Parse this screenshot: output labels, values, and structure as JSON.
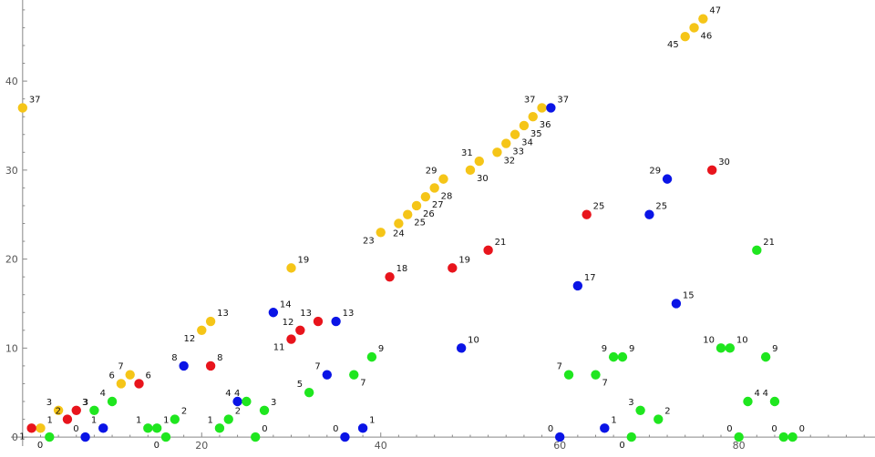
{
  "chart_data": {
    "type": "scatter",
    "title": "",
    "xlabel": "",
    "ylabel": "",
    "xlim": [
      -1,
      95
    ],
    "ylim": [
      -0.5,
      48.5
    ],
    "grid": false,
    "legend": "none",
    "x_ticks": [
      20,
      40,
      60,
      80
    ],
    "y_ticks": [
      0,
      10,
      20,
      30,
      40
    ],
    "colors": {
      "yellow": "#f5c518",
      "red": "#e8141c",
      "blue": "#0a14e6",
      "green": "#1fe61f"
    },
    "series": [
      {
        "color": "yellow",
        "points": [
          {
            "x": 0,
            "y": 37,
            "label": "37"
          },
          {
            "x": 2,
            "y": 1,
            "label": "1"
          },
          {
            "x": 4,
            "y": 3,
            "label": "3"
          },
          {
            "x": 11,
            "y": 6,
            "label": "6"
          },
          {
            "x": 12,
            "y": 7,
            "label": "7"
          },
          {
            "x": 20,
            "y": 12,
            "label": "12"
          },
          {
            "x": 21,
            "y": 13,
            "label": "13"
          },
          {
            "x": 30,
            "y": 19,
            "label": "19"
          },
          {
            "x": 40,
            "y": 23,
            "label": "23"
          },
          {
            "x": 42,
            "y": 24,
            "label": "24"
          },
          {
            "x": 43,
            "y": 25,
            "label": "25"
          },
          {
            "x": 44,
            "y": 26,
            "label": "26"
          },
          {
            "x": 45,
            "y": 27,
            "label": "27"
          },
          {
            "x": 46,
            "y": 28,
            "label": "28"
          },
          {
            "x": 47,
            "y": 29,
            "label": "29"
          },
          {
            "x": 50,
            "y": 30,
            "label": "30"
          },
          {
            "x": 51,
            "y": 31,
            "label": "31"
          },
          {
            "x": 53,
            "y": 32,
            "label": "32"
          },
          {
            "x": 54,
            "y": 33,
            "label": "33"
          },
          {
            "x": 55,
            "y": 34,
            "label": "34"
          },
          {
            "x": 56,
            "y": 35,
            "label": "35"
          },
          {
            "x": 57,
            "y": 36,
            "label": "36"
          },
          {
            "x": 58,
            "y": 37,
            "label": "37"
          },
          {
            "x": 74,
            "y": 45,
            "label": "45"
          },
          {
            "x": 75,
            "y": 46,
            "label": "46"
          },
          {
            "x": 76,
            "y": 47,
            "label": "47"
          }
        ]
      },
      {
        "color": "red",
        "points": [
          {
            "x": 1,
            "y": 1,
            "label": "1"
          },
          {
            "x": 5,
            "y": 2,
            "label": "2"
          },
          {
            "x": 6,
            "y": 3,
            "label": "3"
          },
          {
            "x": 13,
            "y": 6,
            "label": "6"
          },
          {
            "x": 21,
            "y": 8,
            "label": "8"
          },
          {
            "x": 30,
            "y": 11,
            "label": "11"
          },
          {
            "x": 31,
            "y": 12,
            "label": "12"
          },
          {
            "x": 33,
            "y": 13,
            "label": "13"
          },
          {
            "x": 41,
            "y": 18,
            "label": "18"
          },
          {
            "x": 48,
            "y": 19,
            "label": "19"
          },
          {
            "x": 52,
            "y": 21,
            "label": "21"
          },
          {
            "x": 63,
            "y": 25,
            "label": "25"
          },
          {
            "x": 77,
            "y": 30,
            "label": "30"
          }
        ]
      },
      {
        "color": "blue",
        "points": [
          {
            "x": 7,
            "y": 0,
            "label": "0"
          },
          {
            "x": 9,
            "y": 1,
            "label": "1"
          },
          {
            "x": 18,
            "y": 8,
            "label": "8"
          },
          {
            "x": 24,
            "y": 4,
            "label": "4"
          },
          {
            "x": 28,
            "y": 14,
            "label": "14"
          },
          {
            "x": 34,
            "y": 7,
            "label": "7"
          },
          {
            "x": 35,
            "y": 13,
            "label": "13"
          },
          {
            "x": 36,
            "y": 0,
            "label": "0"
          },
          {
            "x": 38,
            "y": 1,
            "label": "1"
          },
          {
            "x": 49,
            "y": 10,
            "label": "10"
          },
          {
            "x": 59,
            "y": 37,
            "label": "37"
          },
          {
            "x": 60,
            "y": 0,
            "label": "0"
          },
          {
            "x": 62,
            "y": 17,
            "label": "17"
          },
          {
            "x": 65,
            "y": 1,
            "label": "1"
          },
          {
            "x": 70,
            "y": 25,
            "label": "25"
          },
          {
            "x": 72,
            "y": 29,
            "label": "29"
          },
          {
            "x": 73,
            "y": 15,
            "label": "15"
          }
        ]
      },
      {
        "color": "green",
        "points": [
          {
            "x": 3,
            "y": 0,
            "label": "0"
          },
          {
            "x": 8,
            "y": 3,
            "label": "3"
          },
          {
            "x": 10,
            "y": 4,
            "label": "4"
          },
          {
            "x": 14,
            "y": 1,
            "label": "1"
          },
          {
            "x": 15,
            "y": 1,
            "label": "1"
          },
          {
            "x": 16,
            "y": 0,
            "label": "0"
          },
          {
            "x": 17,
            "y": 2,
            "label": "2"
          },
          {
            "x": 22,
            "y": 1,
            "label": "1"
          },
          {
            "x": 23,
            "y": 2,
            "label": "2"
          },
          {
            "x": 25,
            "y": 4,
            "label": "4"
          },
          {
            "x": 26,
            "y": 0,
            "label": "0"
          },
          {
            "x": 27,
            "y": 3,
            "label": "3"
          },
          {
            "x": 32,
            "y": 5,
            "label": "5"
          },
          {
            "x": 37,
            "y": 7,
            "label": "7"
          },
          {
            "x": 39,
            "y": 9,
            "label": "9"
          },
          {
            "x": 61,
            "y": 7,
            "label": "7"
          },
          {
            "x": 64,
            "y": 7,
            "label": "7"
          },
          {
            "x": 66,
            "y": 9,
            "label": "9"
          },
          {
            "x": 67,
            "y": 9,
            "label": "9"
          },
          {
            "x": 68,
            "y": 0,
            "label": "0"
          },
          {
            "x": 69,
            "y": 3,
            "label": "3"
          },
          {
            "x": 71,
            "y": 2,
            "label": "2"
          },
          {
            "x": 78,
            "y": 10,
            "label": "10"
          },
          {
            "x": 79,
            "y": 10,
            "label": "10"
          },
          {
            "x": 80,
            "y": 0,
            "label": "0"
          },
          {
            "x": 81,
            "y": 4,
            "label": "4"
          },
          {
            "x": 82,
            "y": 21,
            "label": "21"
          },
          {
            "x": 83,
            "y": 9,
            "label": "9"
          },
          {
            "x": 84,
            "y": 4,
            "label": "4"
          },
          {
            "x": 85,
            "y": 0,
            "label": "0"
          },
          {
            "x": 86,
            "y": 0,
            "label": "0"
          }
        ]
      }
    ],
    "label_offsets": {
      "0:0": "ne",
      "0:1": "ne",
      "0:2": "nw",
      "0:3": "nw",
      "0:4": "nw",
      "0:5": "sw",
      "0:6": "ne",
      "0:7": "ne",
      "0:8": "sw",
      "0:9": "s",
      "0:10": "se",
      "0:11": "se",
      "0:12": "se",
      "0:13": "se",
      "0:14": "nw",
      "0:15": "se",
      "0:16": "nw",
      "0:17": "se",
      "0:18": "se",
      "0:19": "se",
      "0:20": "se",
      "0:21": "se",
      "0:22": "nw",
      "0:23": "sw",
      "0:24": "se",
      "0:25": "ne",
      "1:0": "sw",
      "1:1": "nw",
      "1:2": "ne",
      "1:3": "ne",
      "1:4": "ne",
      "1:5": "sw",
      "1:6": "nw",
      "1:7": "nw",
      "1:8": "ne",
      "1:9": "ne",
      "1:10": "ne",
      "1:11": "ne",
      "1:12": "ne",
      "2:0": "nw",
      "2:1": "nw",
      "2:2": "nw",
      "2:3": "nw",
      "2:4": "ne",
      "2:5": "nw",
      "2:6": "ne",
      "2:7": "nw",
      "2:8": "ne",
      "2:9": "ne",
      "2:10": "ne",
      "2:11": "nw",
      "2:12": "ne",
      "2:13": "ne",
      "2:14": "ne",
      "2:15": "nw",
      "2:16": "ne",
      "3:0": "sw",
      "3:1": "nw",
      "3:2": "nw",
      "3:3": "nw",
      "3:4": "ne",
      "3:5": "sw",
      "3:6": "ne",
      "3:7": "nw",
      "3:8": "ne",
      "3:9": "nw",
      "3:10": "ne",
      "3:11": "ne",
      "3:12": "nw",
      "3:13": "se",
      "3:14": "ne",
      "3:15": "nw",
      "3:16": "se",
      "3:17": "nw",
      "3:18": "ne",
      "3:19": "sw",
      "3:20": "nw",
      "3:21": "ne",
      "3:22": "nw",
      "3:23": "ne",
      "3:24": "nw",
      "3:25": "ne",
      "3:26": "ne",
      "3:27": "ne",
      "3:28": "nw",
      "3:29": "nw",
      "3:30": "ne"
    }
  }
}
